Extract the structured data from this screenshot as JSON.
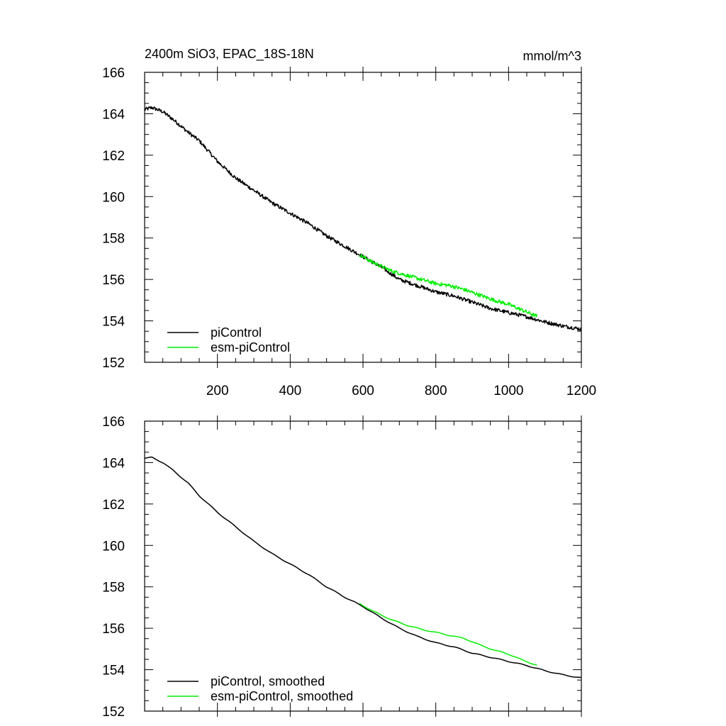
{
  "chart_data": [
    {
      "type": "line",
      "title_left": "2400m SiO3, EPAC_18S-18N",
      "title_right": "mmol/m^3",
      "xlim": [
        0,
        1200
      ],
      "ylim": [
        152,
        166
      ],
      "x_ticks": [
        200,
        400,
        600,
        800,
        1000,
        1200
      ],
      "y_ticks": [
        152,
        154,
        156,
        158,
        160,
        162,
        164,
        166
      ],
      "show_x_tick_labels": true,
      "legend_position": "bottom-left",
      "series": [
        {
          "name": "piControl",
          "color": "#000000",
          "noisy": true,
          "points": [
            [
              0,
              164.2
            ],
            [
              20,
              164.3
            ],
            [
              50,
              164.1
            ],
            [
              80,
              163.7
            ],
            [
              120,
              163.1
            ],
            [
              150,
              162.7
            ],
            [
              200,
              161.7
            ],
            [
              250,
              160.9
            ],
            [
              300,
              160.3
            ],
            [
              350,
              159.7
            ],
            [
              400,
              159.2
            ],
            [
              450,
              158.7
            ],
            [
              500,
              158.1
            ],
            [
              550,
              157.6
            ],
            [
              600,
              157.1
            ],
            [
              650,
              156.6
            ],
            [
              700,
              156.0
            ],
            [
              750,
              155.7
            ],
            [
              800,
              155.4
            ],
            [
              850,
              155.2
            ],
            [
              900,
              154.9
            ],
            [
              950,
              154.6
            ],
            [
              1000,
              154.4
            ],
            [
              1050,
              154.2
            ],
            [
              1100,
              153.95
            ],
            [
              1150,
              153.75
            ],
            [
              1200,
              153.6
            ]
          ]
        },
        {
          "name": "esm-piControl",
          "color": "#00ee00",
          "noisy": true,
          "points": [
            [
              590,
              157.2
            ],
            [
              630,
              156.8
            ],
            [
              680,
              156.4
            ],
            [
              720,
              156.2
            ],
            [
              760,
              156.0
            ],
            [
              800,
              155.8
            ],
            [
              840,
              155.7
            ],
            [
              880,
              155.5
            ],
            [
              920,
              155.25
            ],
            [
              960,
              155.0
            ],
            [
              1000,
              154.8
            ],
            [
              1040,
              154.5
            ],
            [
              1080,
              154.2
            ]
          ]
        }
      ]
    },
    {
      "type": "line",
      "xlim": [
        0,
        1200
      ],
      "ylim": [
        152,
        166
      ],
      "x_ticks": [
        200,
        400,
        600,
        800,
        1000,
        1200
      ],
      "y_ticks": [
        152,
        154,
        156,
        158,
        160,
        162,
        164,
        166
      ],
      "show_x_tick_labels": false,
      "legend_position": "bottom-left",
      "series": [
        {
          "name": "piControl, smoothed",
          "color": "#000000",
          "noisy": false,
          "points": [
            [
              0,
              164.2
            ],
            [
              20,
              164.25
            ],
            [
              50,
              164.0
            ],
            [
              80,
              163.6
            ],
            [
              120,
              163.0
            ],
            [
              150,
              162.4
            ],
            [
              200,
              161.6
            ],
            [
              250,
              160.9
            ],
            [
              300,
              160.2
            ],
            [
              350,
              159.6
            ],
            [
              400,
              159.1
            ],
            [
              450,
              158.6
            ],
            [
              500,
              158.0
            ],
            [
              550,
              157.5
            ],
            [
              600,
              157.05
            ],
            [
              650,
              156.5
            ],
            [
              700,
              156.0
            ],
            [
              750,
              155.6
            ],
            [
              800,
              155.3
            ],
            [
              850,
              155.1
            ],
            [
              900,
              154.8
            ],
            [
              950,
              154.6
            ],
            [
              1000,
              154.4
            ],
            [
              1050,
              154.2
            ],
            [
              1100,
              153.95
            ],
            [
              1150,
              153.75
            ],
            [
              1200,
              153.6
            ]
          ]
        },
        {
          "name": "esm-piControl, smoothed",
          "color": "#00ee00",
          "noisy": false,
          "points": [
            [
              590,
              157.2
            ],
            [
              630,
              156.8
            ],
            [
              680,
              156.4
            ],
            [
              720,
              156.15
            ],
            [
              760,
              155.95
            ],
            [
              800,
              155.8
            ],
            [
              840,
              155.65
            ],
            [
              880,
              155.5
            ],
            [
              920,
              155.2
            ],
            [
              960,
              154.95
            ],
            [
              1000,
              154.75
            ],
            [
              1040,
              154.45
            ],
            [
              1080,
              154.2
            ]
          ]
        }
      ]
    }
  ]
}
